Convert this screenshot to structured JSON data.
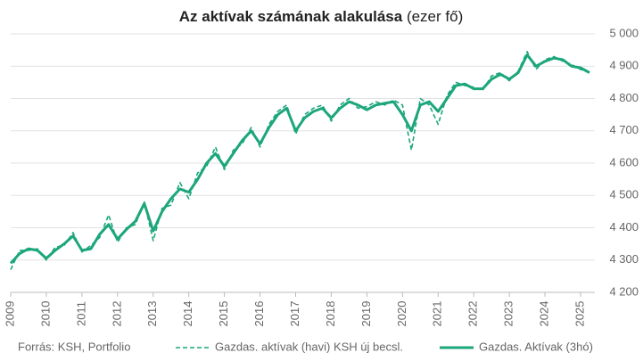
{
  "chart_data": {
    "type": "line",
    "title": "Az aktívak számának alakulása",
    "unit": "(ezer fő)",
    "source": "Forrás: KSH, Portfolio",
    "x": [
      2009,
      2009.25,
      2009.5,
      2009.75,
      2010,
      2010.25,
      2010.5,
      2010.75,
      2011,
      2011.25,
      2011.5,
      2011.75,
      2012,
      2012.25,
      2012.5,
      2012.75,
      2013,
      2013.25,
      2013.5,
      2013.75,
      2014,
      2014.25,
      2014.5,
      2014.75,
      2015,
      2015.25,
      2015.5,
      2015.75,
      2016,
      2016.25,
      2016.5,
      2016.75,
      2017,
      2017.25,
      2017.5,
      2017.75,
      2018,
      2018.25,
      2018.5,
      2018.75,
      2019,
      2019.25,
      2019.5,
      2019.75,
      2020,
      2020.25,
      2020.5,
      2020.75,
      2021,
      2021.25,
      2021.5,
      2021.75,
      2022,
      2022.25,
      2022.5,
      2022.75,
      2023,
      2023.25,
      2023.5,
      2023.75,
      2024,
      2024.25,
      2024.5,
      2024.75,
      2025,
      2025.25
    ],
    "series": [
      {
        "name": "Gazdas. aktívak (havi) KSH új becsl.",
        "color": "#1ca67b",
        "dashed": true,
        "values": [
          4270,
          4330,
          4330,
          4335,
          4300,
          4340,
          4345,
          4385,
          4325,
          4345,
          4370,
          4440,
          4355,
          4400,
          4410,
          4480,
          4360,
          4460,
          4470,
          4540,
          4490,
          4570,
          4590,
          4650,
          4580,
          4640,
          4660,
          4710,
          4650,
          4720,
          4760,
          4780,
          4690,
          4750,
          4770,
          4780,
          4730,
          4780,
          4800,
          4770,
          4775,
          4790,
          4780,
          4795,
          4780,
          4640,
          4800,
          4780,
          4720,
          4810,
          4850,
          4840,
          4835,
          4825,
          4870,
          4880,
          4855,
          4885,
          4945,
          4890,
          4920,
          4930,
          4915,
          4905,
          4890,
          4880
        ]
      },
      {
        "name": "Gazdas. Aktívak (3hó)",
        "color": "#1ca67b",
        "dashed": false,
        "values": [
          4290,
          4320,
          4335,
          4330,
          4305,
          4330,
          4350,
          4375,
          4330,
          4335,
          4380,
          4410,
          4365,
          4395,
          4420,
          4475,
          4390,
          4450,
          4490,
          4520,
          4510,
          4550,
          4600,
          4630,
          4590,
          4630,
          4670,
          4700,
          4660,
          4710,
          4750,
          4770,
          4700,
          4740,
          4760,
          4770,
          4740,
          4770,
          4790,
          4780,
          4765,
          4780,
          4785,
          4790,
          4750,
          4700,
          4780,
          4790,
          4760,
          4800,
          4840,
          4845,
          4830,
          4830,
          4860,
          4875,
          4860,
          4880,
          4935,
          4900,
          4915,
          4925,
          4920,
          4900,
          4895,
          4880
        ]
      }
    ],
    "xlim": [
      2009,
      2025.4
    ],
    "xticks": [
      2009,
      2010,
      2011,
      2012,
      2013,
      2014,
      2015,
      2016,
      2017,
      2018,
      2019,
      2020,
      2021,
      2022,
      2023,
      2024,
      2025
    ],
    "ylim": [
      4200,
      5000
    ],
    "yticks": [
      {
        "value": 4200,
        "label": "4 200"
      },
      {
        "value": 4300,
        "label": "4 300"
      },
      {
        "value": 4400,
        "label": "4 400"
      },
      {
        "value": 4500,
        "label": "4 500"
      },
      {
        "value": 4600,
        "label": "4 600"
      },
      {
        "value": 4700,
        "label": "4 700"
      },
      {
        "value": 4800,
        "label": "4 800"
      },
      {
        "value": 4900,
        "label": "4 900"
      },
      {
        "value": 5000,
        "label": "5 000"
      }
    ],
    "grid": true
  }
}
